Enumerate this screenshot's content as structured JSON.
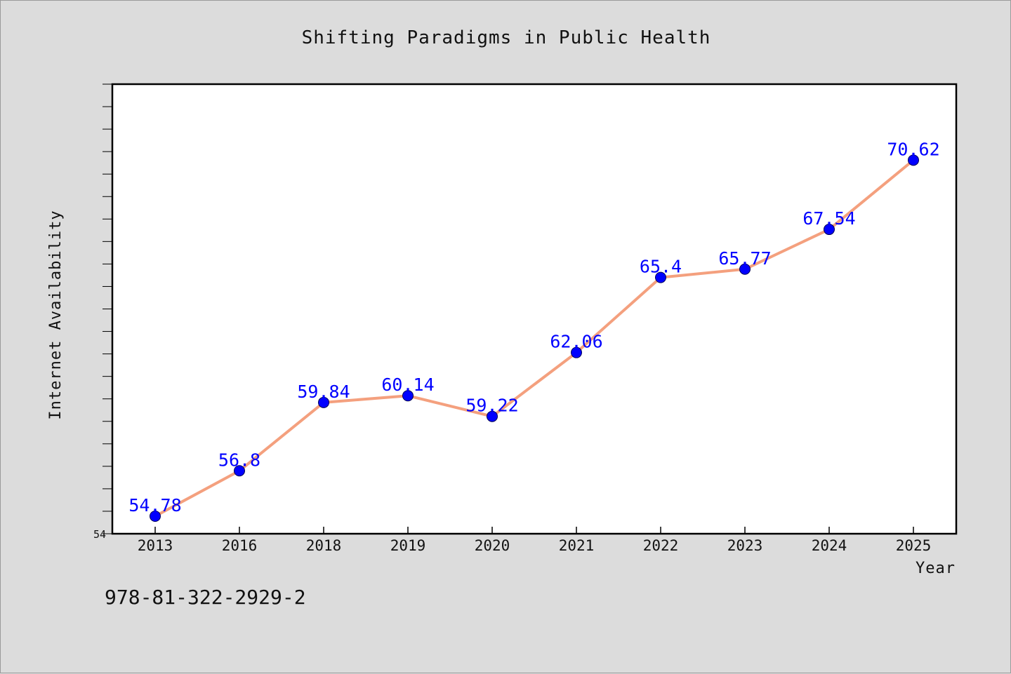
{
  "chart_data": {
    "type": "line",
    "title": "Shifting Paradigms in Public Health",
    "xlabel": "Year",
    "ylabel": "Internet Availability",
    "categories": [
      "2013",
      "2016",
      "2018",
      "2019",
      "2020",
      "2021",
      "2022",
      "2023",
      "2024",
      "2025"
    ],
    "series": [
      {
        "values": [
          54.78,
          56.8,
          59.84,
          60.14,
          59.22,
          62.06,
          65.4,
          65.77,
          67.54,
          70.62
        ],
        "labels": [
          "54.78",
          "56.8",
          "59.84",
          "60.14",
          "59.22",
          "62.06",
          "65.4",
          "65.77",
          "67.54",
          "70.62"
        ],
        "line_color": "#f4a07e",
        "marker_color": "#0000ff"
      }
    ],
    "ylim": [
      54,
      74
    ],
    "y_tick_labels": [
      "54"
    ],
    "grid": false,
    "legend": "none"
  },
  "footer": {
    "isbn": "978-81-322-2929-2"
  }
}
